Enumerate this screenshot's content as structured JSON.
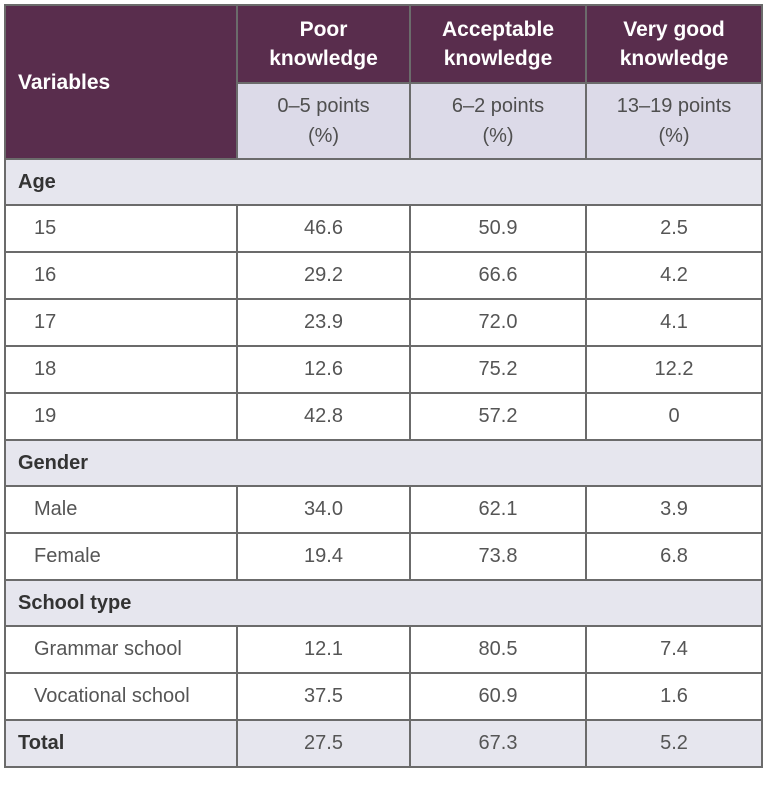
{
  "header": {
    "variables": "Variables",
    "columns": [
      {
        "title_line1": "Poor",
        "title_line2": "knowledge",
        "range": "0–5 points",
        "unit": "(%)"
      },
      {
        "title_line1": "Acceptable",
        "title_line2": "knowledge",
        "range": "6–2 points",
        "unit": "(%)"
      },
      {
        "title_line1": "Very good",
        "title_line2": "knowledge",
        "range": "13–19 points",
        "unit": "(%)"
      }
    ]
  },
  "sections": [
    {
      "title": "Age",
      "rows": [
        {
          "label": "15",
          "poor": "46.6",
          "acceptable": "50.9",
          "very_good": "2.5"
        },
        {
          "label": "16",
          "poor": "29.2",
          "acceptable": "66.6",
          "very_good": "4.2"
        },
        {
          "label": "17",
          "poor": "23.9",
          "acceptable": "72.0",
          "very_good": "4.1"
        },
        {
          "label": "18",
          "poor": "12.6",
          "acceptable": "75.2",
          "very_good": "12.2"
        },
        {
          "label": "19",
          "poor": "42.8",
          "acceptable": "57.2",
          "very_good": "0"
        }
      ]
    },
    {
      "title": "Gender",
      "rows": [
        {
          "label": "Male",
          "poor": "34.0",
          "acceptable": "62.1",
          "very_good": "3.9"
        },
        {
          "label": "Female",
          "poor": "19.4",
          "acceptable": "73.8",
          "very_good": "6.8"
        }
      ]
    },
    {
      "title": "School type",
      "rows": [
        {
          "label": "Grammar school",
          "poor": "12.1",
          "acceptable": "80.5",
          "very_good": "7.4"
        },
        {
          "label": "Vocational school",
          "poor": "37.5",
          "acceptable": "60.9",
          "very_good": "1.6"
        }
      ]
    }
  ],
  "total": {
    "label": "Total",
    "poor": "27.5",
    "acceptable": "67.3",
    "very_good": "5.2"
  },
  "colors": {
    "header_bg": "#592d4d",
    "subheader_bg": "#dcdae8",
    "section_bg": "#e6e6ee",
    "border": "#6b6b6b"
  }
}
